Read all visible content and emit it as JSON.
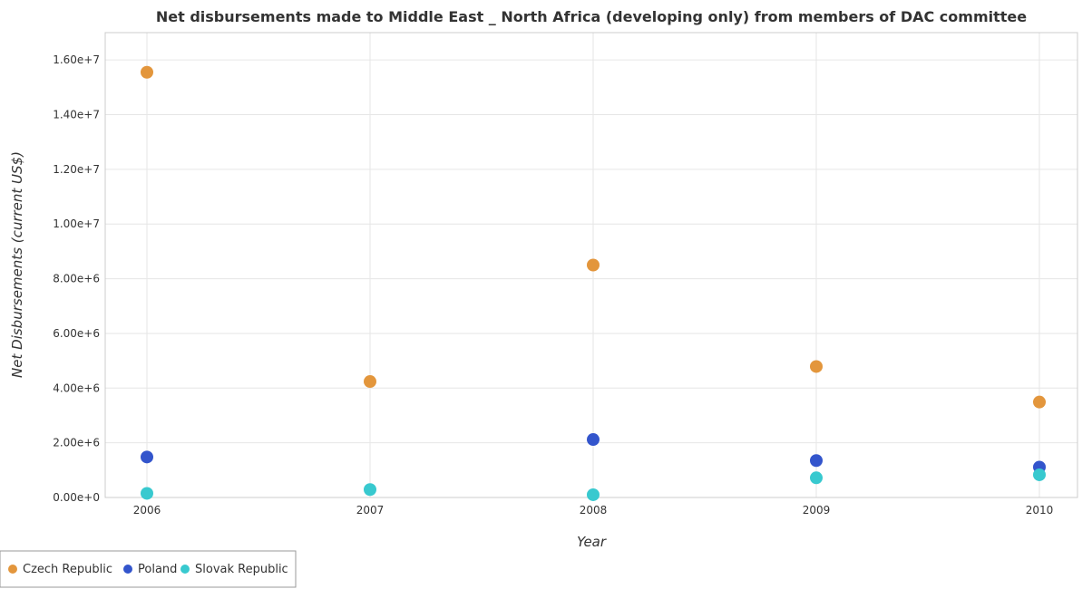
{
  "chart_data": {
    "type": "scatter",
    "title": "Net disbursements made to Middle East _ North Africa (developing only) from members of DAC committee",
    "xlabel": "Year",
    "ylabel": "Net Disbursements (current US$)",
    "categories": [
      "2006",
      "2007",
      "2008",
      "2009",
      "2010"
    ],
    "ylim": [
      0,
      17000000
    ],
    "yticks": [
      0,
      2000000,
      4000000,
      6000000,
      8000000,
      10000000,
      12000000,
      14000000,
      16000000
    ],
    "ytick_labels": [
      "0.00e+0",
      "2.00e+6",
      "4.00e+6",
      "6.00e+6",
      "8.00e+6",
      "1.00e+7",
      "1.20e+7",
      "1.40e+7",
      "1.60e+7"
    ],
    "grid": true,
    "legend_position": "bottom-left",
    "series": [
      {
        "name": "Czech Republic",
        "color": "#e3963c",
        "values": [
          15550000,
          4240000,
          8500000,
          4790000,
          3490000
        ]
      },
      {
        "name": "Poland",
        "color": "#3355cc",
        "values": [
          1480000,
          null,
          2120000,
          1350000,
          1110000
        ]
      },
      {
        "name": "Slovak Republic",
        "color": "#38c9cf",
        "values": [
          150000,
          290000,
          100000,
          720000,
          830000
        ]
      }
    ]
  }
}
